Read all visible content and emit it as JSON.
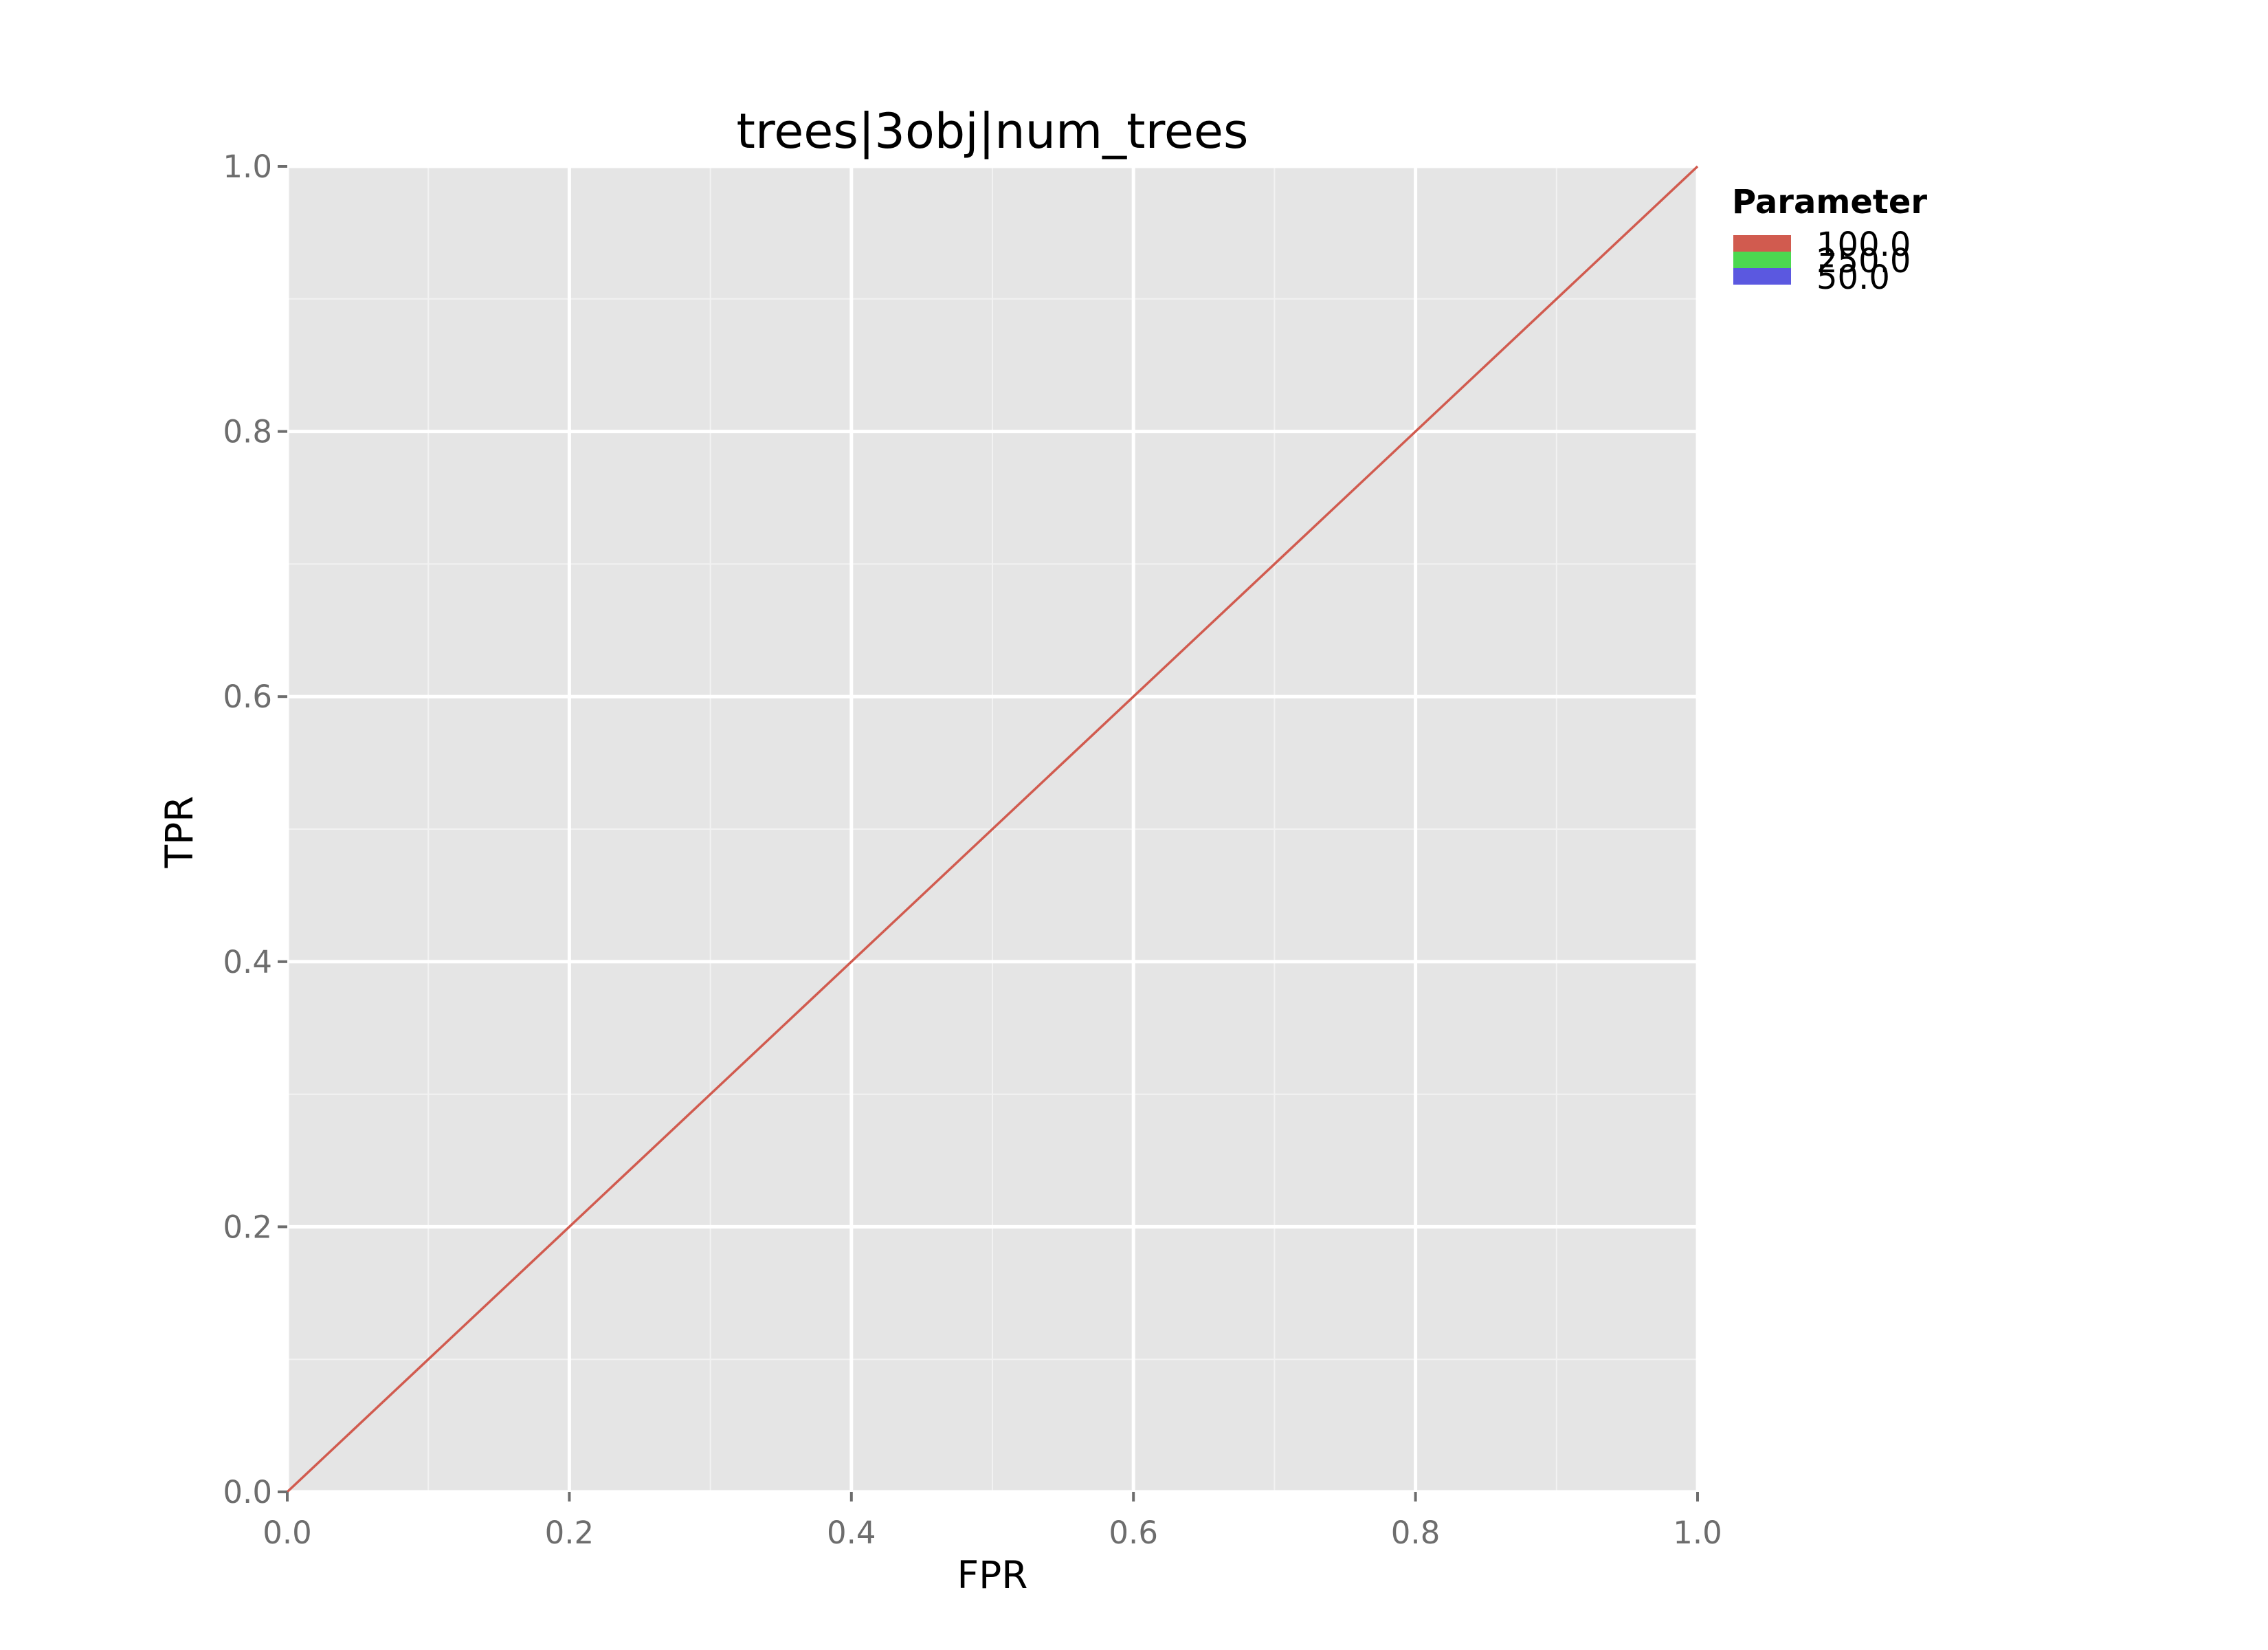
{
  "chart_data": {
    "type": "line",
    "title": "trees|3obj|num_trees",
    "xlabel": "FPR",
    "ylabel": "TPR",
    "xlim": [
      0.0,
      1.0
    ],
    "ylim": [
      0.0,
      1.0
    ],
    "xticks": [
      "0.0",
      "0.2",
      "0.4",
      "0.6",
      "0.8",
      "1.0"
    ],
    "yticks": [
      "0.0",
      "0.2",
      "0.4",
      "0.6",
      "0.8",
      "1.0"
    ],
    "grid": true,
    "background": "#e5e5e5",
    "legend": {
      "title": "Parameter",
      "placement": "right",
      "entries": [
        {
          "label": "100.0",
          "color": "#d15b4f"
        },
        {
          "label": "250.0",
          "color": "#4cd850"
        },
        {
          "label": "50.0",
          "color": "#5b58e0"
        }
      ]
    },
    "series": [
      {
        "name": "100.0",
        "color": "#d15b4f",
        "x": [
          0.0,
          1.0
        ],
        "y": [
          0.0,
          1.0
        ]
      }
    ]
  }
}
